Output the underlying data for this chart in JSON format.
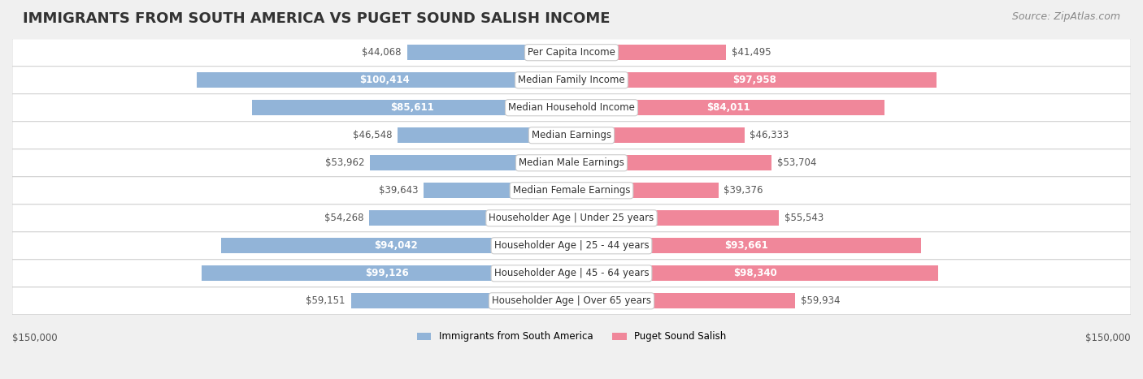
{
  "title": "IMMIGRANTS FROM SOUTH AMERICA VS PUGET SOUND SALISH INCOME",
  "source": "Source: ZipAtlas.com",
  "categories": [
    "Per Capita Income",
    "Median Family Income",
    "Median Household Income",
    "Median Earnings",
    "Median Male Earnings",
    "Median Female Earnings",
    "Householder Age | Under 25 years",
    "Householder Age | 25 - 44 years",
    "Householder Age | 45 - 64 years",
    "Householder Age | Over 65 years"
  ],
  "left_values": [
    44068,
    100414,
    85611,
    46548,
    53962,
    39643,
    54268,
    94042,
    99126,
    59151
  ],
  "right_values": [
    41495,
    97958,
    84011,
    46333,
    53704,
    39376,
    55543,
    93661,
    98340,
    59934
  ],
  "left_labels": [
    "$44,068",
    "$100,414",
    "$85,611",
    "$46,548",
    "$53,962",
    "$39,643",
    "$54,268",
    "$94,042",
    "$99,126",
    "$59,151"
  ],
  "right_labels": [
    "$41,495",
    "$97,958",
    "$84,011",
    "$46,333",
    "$53,704",
    "$39,376",
    "$55,543",
    "$93,661",
    "$98,340",
    "$59,934"
  ],
  "left_color": "#92b4d8",
  "right_color": "#f0879a",
  "left_color_strong": "#6a9dc8",
  "right_color_strong": "#e8607a",
  "bg_color": "#f0f0f0",
  "row_bg": "#f7f7f7",
  "max_value": 150000,
  "legend_left": "Immigrants from South America",
  "legend_right": "Puget Sound Salish",
  "xlabel_left": "$150,000",
  "xlabel_right": "$150,000",
  "title_fontsize": 13,
  "source_fontsize": 9,
  "label_fontsize": 8.5,
  "cat_fontsize": 8.5
}
